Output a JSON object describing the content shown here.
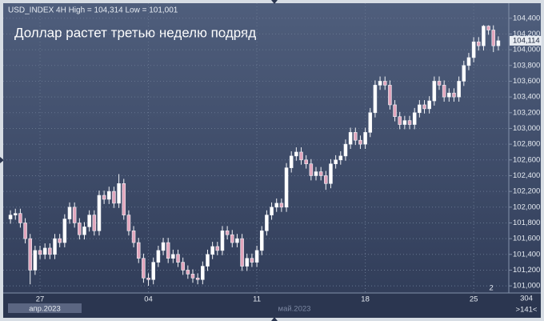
{
  "chart_data": {
    "type": "candlestick",
    "header": "USD_INDEX 4H High = 104,314 Low = 101,001",
    "title": "Доллар растет третью неделю подряд",
    "categories": [
      null,
      null,
      null,
      null,
      null,
      null,
      "27",
      null,
      null,
      null,
      null,
      null,
      null,
      null,
      null,
      null,
      null,
      null,
      null,
      null,
      null,
      null,
      null,
      null,
      null,
      null,
      null,
      null,
      "04",
      null,
      null,
      null,
      null,
      null,
      null,
      null,
      null,
      null,
      null,
      null,
      null,
      null,
      null,
      null,
      null,
      null,
      null,
      null,
      null,
      null,
      "11",
      null,
      null,
      null,
      null,
      null,
      null,
      null,
      null,
      null,
      null,
      null,
      null,
      null,
      null,
      null,
      null,
      null,
      null,
      null,
      null,
      null,
      "18",
      null,
      null,
      null,
      null,
      null,
      null,
      null,
      null,
      null,
      null,
      null,
      null,
      null,
      null,
      null,
      null,
      null,
      null,
      null,
      null,
      null,
      "25",
      null,
      null,
      null,
      null,
      null
    ],
    "open": [
      101.85,
      101.9,
      101.92,
      101.8,
      101.6,
      101.2,
      101.45,
      101.4,
      101.48,
      101.4,
      101.6,
      101.55,
      101.85,
      102.0,
      101.8,
      101.65,
      101.75,
      101.9,
      101.7,
      102.15,
      102.1,
      102.2,
      102.05,
      102.3,
      101.9,
      101.7,
      101.55,
      101.35,
      101.1,
      101.08,
      101.3,
      101.45,
      101.55,
      101.35,
      101.4,
      101.3,
      101.2,
      101.15,
      101.1,
      101.08,
      101.25,
      101.4,
      101.5,
      101.45,
      101.7,
      101.65,
      101.55,
      101.6,
      101.25,
      101.35,
      101.3,
      101.45,
      101.7,
      101.9,
      102.0,
      102.05,
      102.0,
      102.5,
      102.65,
      102.7,
      102.6,
      102.55,
      102.4,
      102.45,
      102.4,
      102.3,
      102.55,
      102.6,
      102.65,
      102.8,
      102.95,
      102.85,
      102.8,
      102.95,
      103.2,
      103.55,
      103.6,
      103.55,
      103.3,
      103.15,
      103.05,
      103.1,
      103.05,
      103.2,
      103.3,
      103.25,
      103.35,
      103.6,
      103.55,
      103.4,
      103.45,
      103.4,
      103.6,
      103.8,
      103.9,
      104.1,
      104.05,
      104.3,
      104.25,
      104.05
    ],
    "high": [
      101.96,
      101.98,
      101.98,
      101.86,
      101.66,
      101.51,
      101.51,
      101.54,
      101.54,
      101.66,
      101.66,
      101.91,
      102.06,
      102.06,
      101.86,
      101.81,
      101.96,
      101.96,
      102.21,
      102.21,
      102.26,
      102.26,
      102.42,
      102.36,
      101.96,
      101.76,
      101.61,
      101.41,
      101.16,
      101.36,
      101.51,
      101.61,
      101.61,
      101.46,
      101.46,
      101.36,
      101.26,
      101.21,
      101.16,
      101.31,
      101.46,
      101.56,
      101.56,
      101.76,
      101.76,
      101.71,
      101.66,
      101.66,
      101.41,
      101.41,
      101.51,
      101.76,
      101.96,
      102.06,
      102.11,
      102.11,
      102.56,
      102.71,
      102.76,
      102.76,
      102.66,
      102.61,
      102.51,
      102.51,
      102.46,
      102.61,
      102.66,
      102.71,
      102.86,
      103.01,
      103.01,
      102.91,
      103.01,
      103.26,
      103.61,
      103.66,
      103.66,
      103.61,
      103.36,
      103.21,
      103.16,
      103.16,
      103.26,
      103.36,
      103.36,
      103.41,
      103.66,
      103.66,
      103.61,
      103.51,
      103.51,
      103.66,
      103.86,
      103.96,
      104.16,
      104.16,
      104.314,
      104.31,
      104.31,
      104.17
    ],
    "low": [
      101.79,
      101.84,
      101.74,
      101.54,
      101.02,
      101.14,
      101.34,
      101.34,
      101.34,
      101.34,
      101.49,
      101.49,
      101.79,
      101.74,
      101.59,
      101.59,
      101.69,
      101.64,
      101.64,
      102.04,
      102.04,
      101.99,
      101.99,
      101.84,
      101.64,
      101.49,
      101.29,
      101.04,
      101.001,
      101.02,
      101.24,
      101.39,
      101.29,
      101.29,
      101.24,
      101.14,
      101.09,
      101.04,
      101.02,
      101.02,
      101.19,
      101.34,
      101.39,
      101.39,
      101.59,
      101.49,
      101.49,
      101.19,
      101.19,
      101.24,
      101.24,
      101.39,
      101.64,
      101.84,
      101.94,
      101.94,
      101.94,
      102.44,
      102.59,
      102.54,
      102.49,
      102.34,
      102.34,
      102.34,
      102.22,
      102.24,
      102.49,
      102.54,
      102.59,
      102.74,
      102.79,
      102.74,
      102.74,
      102.89,
      103.14,
      103.49,
      103.49,
      103.24,
      103.09,
      102.99,
      102.99,
      102.99,
      102.99,
      103.14,
      103.19,
      103.19,
      103.29,
      103.49,
      103.34,
      103.34,
      103.34,
      103.34,
      103.54,
      103.74,
      103.84,
      103.99,
      103.99,
      104.19,
      103.97,
      103.99
    ],
    "close": [
      101.9,
      101.92,
      101.8,
      101.6,
      101.2,
      101.45,
      101.4,
      101.48,
      101.4,
      101.6,
      101.55,
      101.85,
      102.0,
      101.8,
      101.65,
      101.75,
      101.9,
      101.7,
      102.15,
      102.1,
      102.2,
      102.05,
      102.3,
      101.9,
      101.7,
      101.55,
      101.35,
      101.1,
      101.08,
      101.3,
      101.45,
      101.55,
      101.35,
      101.4,
      101.3,
      101.2,
      101.15,
      101.1,
      101.08,
      101.25,
      101.4,
      101.5,
      101.45,
      101.7,
      101.65,
      101.55,
      101.6,
      101.25,
      101.35,
      101.3,
      101.45,
      101.7,
      101.9,
      102.0,
      102.05,
      102.0,
      102.5,
      102.65,
      102.7,
      102.6,
      102.55,
      102.4,
      102.45,
      102.4,
      102.3,
      102.55,
      102.6,
      102.65,
      102.8,
      102.95,
      102.85,
      102.8,
      102.95,
      103.2,
      103.55,
      103.6,
      103.55,
      103.3,
      103.15,
      103.05,
      103.1,
      103.05,
      103.2,
      103.3,
      103.25,
      103.35,
      103.6,
      103.55,
      103.4,
      103.45,
      103.4,
      103.6,
      103.8,
      103.9,
      104.1,
      104.05,
      104.3,
      104.25,
      104.05,
      104.114
    ],
    "last_label": "104,114",
    "up_color": "#ffffff",
    "down_color": "#e3a6bd",
    "ylim": [
      100.92,
      104.53
    ],
    "yticks": [
      {
        "value": 101.0,
        "label": "101,000"
      },
      {
        "value": 101.2,
        "label": "101,200"
      },
      {
        "value": 101.4,
        "label": "101,400"
      },
      {
        "value": 101.6,
        "label": "101,600"
      },
      {
        "value": 101.8,
        "label": "101,800"
      },
      {
        "value": 102.0,
        "label": "102,000"
      },
      {
        "value": 102.2,
        "label": "102,200"
      },
      {
        "value": 102.4,
        "label": "102,400"
      },
      {
        "value": 102.6,
        "label": "102,600"
      },
      {
        "value": 102.8,
        "label": "102,800"
      },
      {
        "value": 103.0,
        "label": "103,000"
      },
      {
        "value": 103.2,
        "label": "103,200"
      },
      {
        "value": 103.4,
        "label": "103,400"
      },
      {
        "value": 103.6,
        "label": "103,600"
      },
      {
        "value": 103.8,
        "label": "103,800"
      },
      {
        "value": 104.0,
        "label": "104,000"
      },
      {
        "value": 104.2,
        "label": "104,200"
      },
      {
        "value": 104.4,
        "label": "104,400"
      }
    ],
    "grid": true,
    "month_labels": [
      "апр.2023",
      "май.2023"
    ],
    "status": {
      "bars": 304,
      "scroll": ">141<",
      "marker": 2
    }
  }
}
